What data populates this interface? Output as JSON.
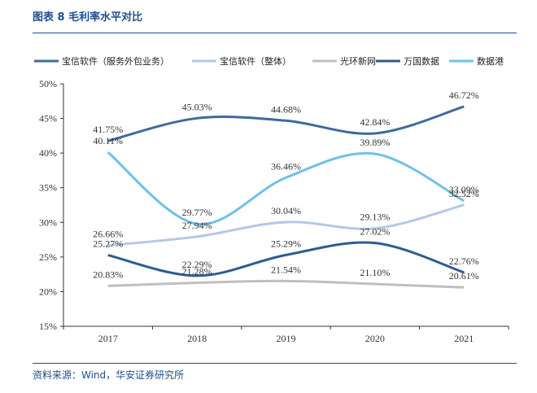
{
  "header": {
    "title": "图表 8 毛利率水平对比"
  },
  "footer": {
    "source": "资料来源：Wind，华安证券研究所"
  },
  "chart_data": {
    "type": "line",
    "categories": [
      "2017",
      "2018",
      "2019",
      "2020",
      "2021"
    ],
    "ylim": [
      15,
      50
    ],
    "yticks": [
      "15%",
      "20%",
      "25%",
      "30%",
      "35%",
      "40%",
      "45%",
      "50%"
    ],
    "grid": false,
    "legend_position": "top",
    "series": [
      {
        "name": "宝信软件（服务外包业务）",
        "color": "#3d6b9e",
        "values": [
          41.75,
          45.03,
          44.68,
          42.84,
          46.72
        ],
        "labels": [
          "41.75%",
          "45.03%",
          "44.68%",
          "42.84%",
          "46.72%"
        ]
      },
      {
        "name": "宝信软件（整体）",
        "color": "#b4c7e7",
        "values": [
          26.66,
          27.94,
          30.04,
          29.13,
          32.52
        ],
        "labels": [
          "26.66%",
          "27.94%",
          "30.04%",
          "29.13%",
          "32.52%"
        ]
      },
      {
        "name": "光环新网",
        "color": "#bfbfbf",
        "values": [
          20.83,
          21.28,
          21.54,
          21.1,
          20.61
        ],
        "labels": [
          "20.83%",
          "21.28%",
          "21.54%",
          "21.10%",
          "20.61%"
        ]
      },
      {
        "name": "万国数据",
        "color": "#2e5d8f",
        "values": [
          25.27,
          22.29,
          25.29,
          27.02,
          22.76
        ],
        "labels": [
          "25.27%",
          "22.29%",
          "25.29%",
          "27.02%",
          "22.76%"
        ]
      },
      {
        "name": "数据港",
        "color": "#6ec1ea",
        "values": [
          40.11,
          29.77,
          36.46,
          39.89,
          33.09
        ],
        "labels": [
          "40.11%",
          "29.77%",
          "36.46%",
          "39.89%",
          "33.09%"
        ]
      }
    ]
  }
}
